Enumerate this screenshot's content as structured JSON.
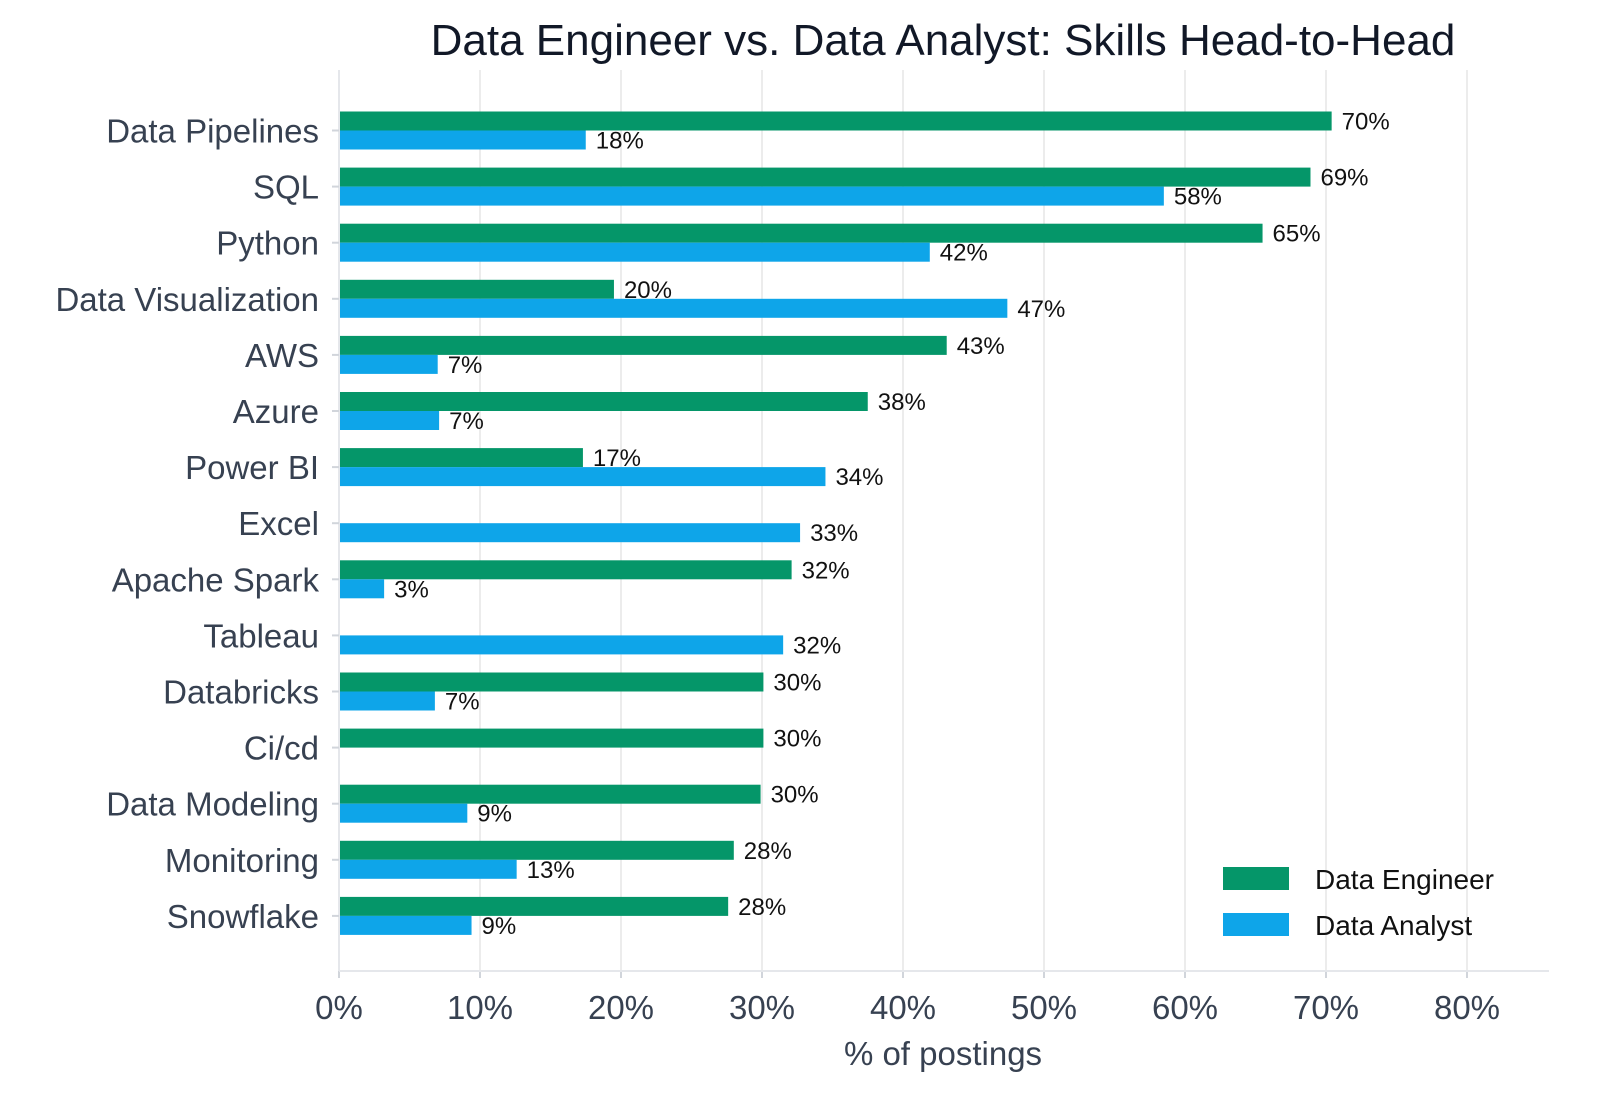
{
  "chart_data": {
    "type": "bar",
    "orientation": "horizontal",
    "title": "Data Engineer vs. Data Analyst: Skills Head-to-Head",
    "xlabel": "% of postings",
    "ylabel": "",
    "xlim": [
      0,
      85
    ],
    "xticks": [
      0,
      10,
      20,
      30,
      40,
      50,
      60,
      70,
      80
    ],
    "xtick_labels": [
      "0%",
      "10%",
      "20%",
      "30%",
      "40%",
      "50%",
      "60%",
      "70%",
      "80%"
    ],
    "grid": "vertical",
    "legend_position": "bottom-right",
    "categories": [
      "Data Pipelines",
      "SQL",
      "Python",
      "Data Visualization",
      "AWS",
      "Azure",
      "Power BI",
      "Excel",
      "Apache Spark",
      "Tableau",
      "Databricks",
      "Ci/cd",
      "Data Modeling",
      "Monitoring",
      "Snowflake"
    ],
    "series": [
      {
        "name": "Data Engineer",
        "color": "#059669",
        "values": [
          70.4,
          68.9,
          65.5,
          19.5,
          43.1,
          37.5,
          17.3,
          null,
          32.1,
          null,
          30.1,
          30.1,
          29.9,
          28.0,
          27.6
        ],
        "labels": [
          "70%",
          "69%",
          "65%",
          "20%",
          "43%",
          "38%",
          "17%",
          "",
          "32%",
          "",
          "30%",
          "30%",
          "30%",
          "28%",
          "28%"
        ]
      },
      {
        "name": "Data Analyst",
        "color": "#0EA5E9",
        "values": [
          17.5,
          58.5,
          41.9,
          47.4,
          7.0,
          7.1,
          34.5,
          32.7,
          3.2,
          31.5,
          6.8,
          null,
          9.1,
          12.6,
          9.4
        ],
        "labels": [
          "18%",
          "58%",
          "42%",
          "47%",
          "7%",
          "7%",
          "34%",
          "33%",
          "3%",
          "32%",
          "7%",
          "",
          "9%",
          "13%",
          "9%"
        ]
      }
    ]
  }
}
